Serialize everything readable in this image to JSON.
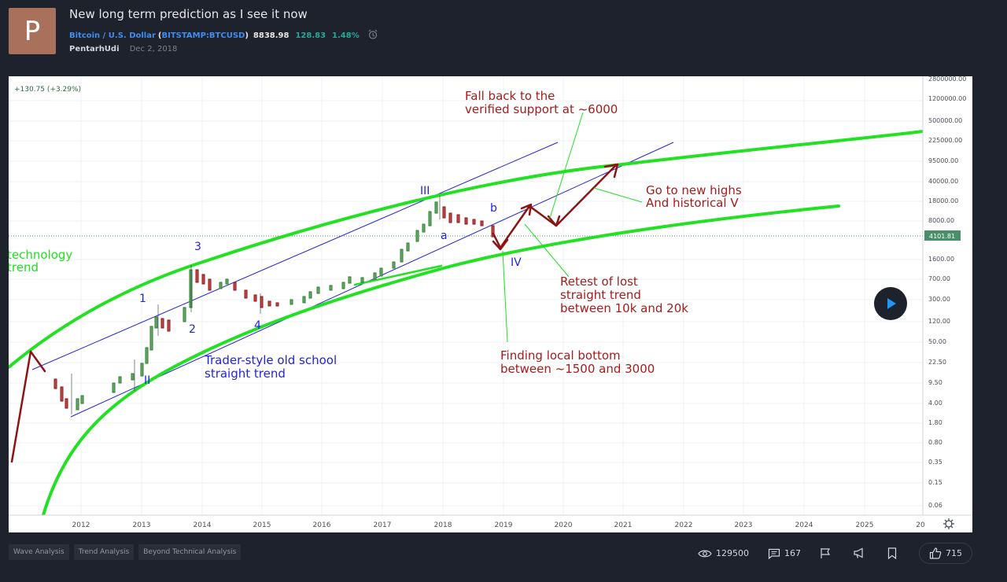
{
  "post": {
    "avatar_letter": "P",
    "title": "New long term prediction as I see it now",
    "symbol_name": "Bitcoin / U.S. Dollar",
    "symbol_open": "(",
    "symbol_ticker": "BITSTAMP:BTCUSD",
    "symbol_close": ")",
    "price": "8838.98",
    "change": "128.83",
    "change_pct": "1.48%",
    "author": "PentarhUdi",
    "date": "Dec 2, 2018"
  },
  "chart": {
    "legend": "+130.75 (+3.29%)",
    "y_ticks": [
      "2800000.00",
      "1200000.00",
      "500000.00",
      "225000.00",
      "95000.00",
      "40000.00",
      "18000.00",
      "8000.00",
      "1600.00",
      "700.00",
      "300.00",
      "120.00",
      "50.00",
      "22.50",
      "9.50",
      "4.00",
      "1.80",
      "0.80",
      "0.35",
      "0.15",
      "0.06"
    ],
    "price_tag": "4101.81",
    "x_ticks": [
      "2012",
      "2013",
      "2014",
      "2015",
      "2016",
      "2017",
      "2018",
      "2019",
      "2020",
      "2021",
      "2022",
      "2023",
      "2024",
      "2025",
      "20"
    ],
    "annotations": {
      "tech_line1": "technology",
      "tech_line2": "trend",
      "fall_line1": "Fall back to the",
      "fall_line2": "verified support at ~6000",
      "new_highs_line1": "Go to new highs",
      "new_highs_line2": "And historical V",
      "retest_line1": "Retest of lost",
      "retest_line2": "straight trend",
      "retest_line3": "between 10k and 20k",
      "bottom_line1": "Finding local bottom",
      "bottom_line2": "between ~1500 and 3000",
      "trader_line1": "Trader-style old school",
      "trader_line2": "straight trend"
    },
    "wave_labels": {
      "w1": "1",
      "w2": "2",
      "w3": "3",
      "w4": "4",
      "wII": "II",
      "wIII": "III",
      "wIV": "IV",
      "wa": "a",
      "wb": "b"
    },
    "colors": {
      "green": "#22e022",
      "dark_red": "#8b1414",
      "blue": "#2424d8",
      "price_tag": "#4a8f6a"
    }
  },
  "tags": [
    "Wave Analysis",
    "Trend Analysis",
    "Beyond Technical Analysis"
  ],
  "stats": {
    "views": "129500",
    "comments": "167",
    "likes": "715"
  }
}
